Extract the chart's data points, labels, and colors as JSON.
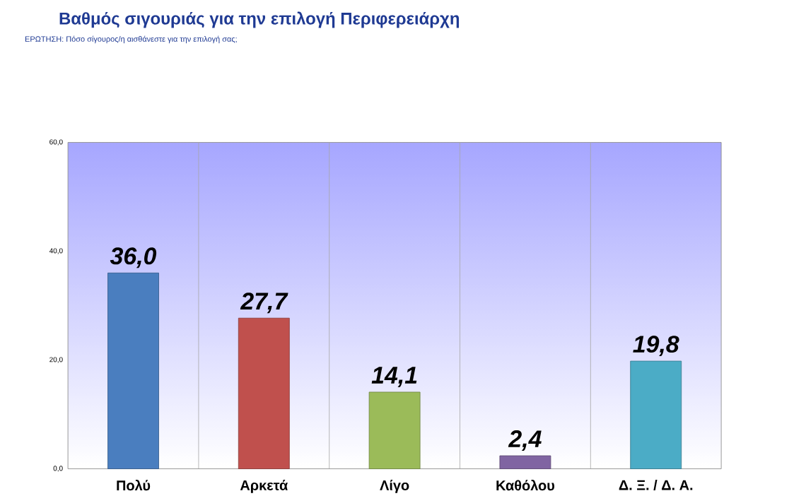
{
  "chart_data": {
    "type": "bar",
    "title": "Βαθμός σιγουριάς για την επιλογή Περιφερειάρχη",
    "subtitle": "ΕΡΩΤΗΣΗ: Πόσο σίγουρος/η αισθάνεστε για την επιλογή σας;",
    "categories": [
      "Πολύ",
      "Αρκετά",
      "Λίγο",
      "Καθόλου",
      "Δ. Ξ. / Δ. Α."
    ],
    "values": [
      36.0,
      27.7,
      14.1,
      2.4,
      19.8
    ],
    "colors": [
      "#4a7ebf",
      "#c0504d",
      "#9bbb59",
      "#8064a2",
      "#4bacc6"
    ],
    "value_labels": [
      "36,0",
      "27,7",
      "14,1",
      "2,4",
      "19,8"
    ],
    "ylim": [
      0,
      60
    ],
    "yticks": [
      {
        "value": 0,
        "label": "0,0"
      },
      {
        "value": 20,
        "label": "20,0"
      },
      {
        "value": 40,
        "label": "40,0"
      },
      {
        "value": 60,
        "label": "60,0"
      }
    ]
  }
}
